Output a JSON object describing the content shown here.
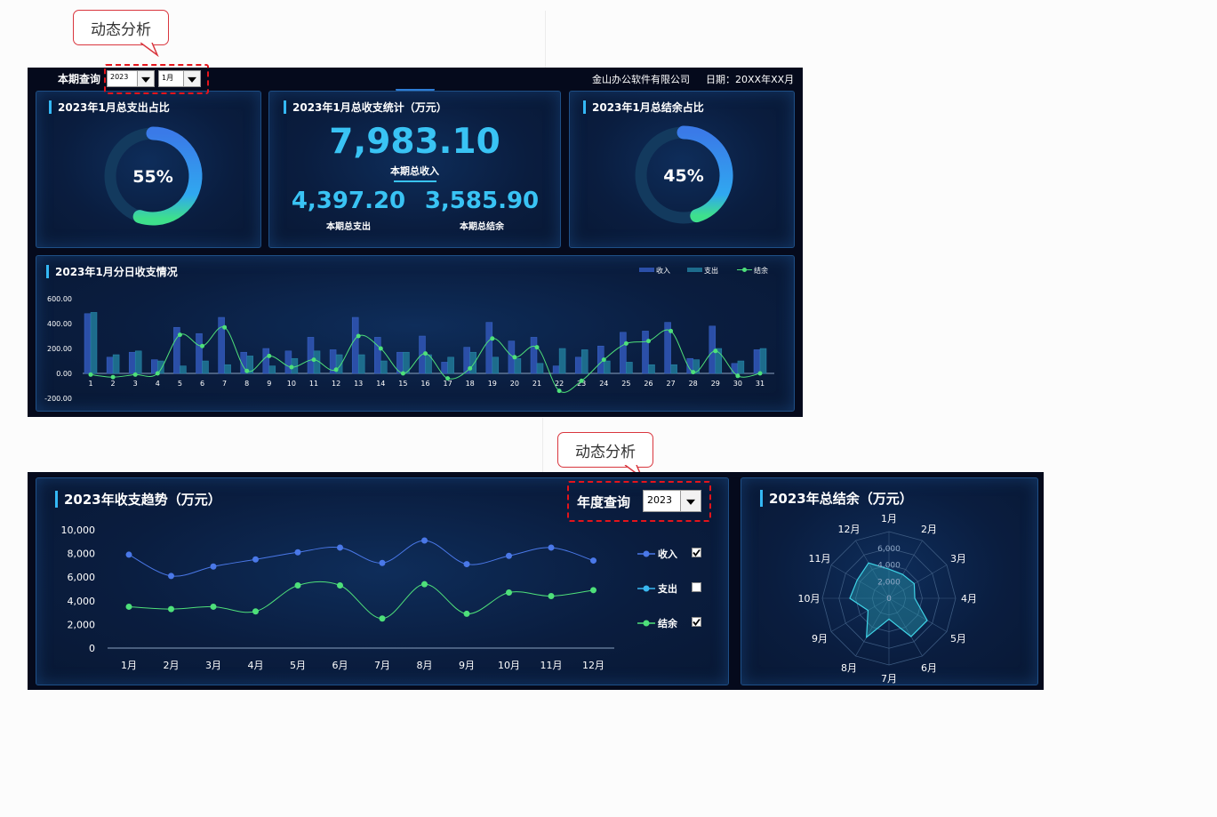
{
  "callout_label": "动态分析",
  "dash1": {
    "query_label": "本期查询",
    "year_select": "2023",
    "month_select": "1月",
    "company": "金山办公软件有限公司",
    "date_label": "日期：20XX年XX月",
    "expense_card": {
      "title": "2023年1月总支出占比",
      "percent_label": "55%",
      "percent": 55
    },
    "stats_card": {
      "title": "2023年1月总收支统计（万元）",
      "income_value": "7,983.10",
      "income_label": "本期总收入",
      "expense_value": "4,397.20",
      "expense_label": "本期总支出",
      "balance_value": "3,585.90",
      "balance_label": "本期总结余"
    },
    "balance_card": {
      "title": "2023年1月总结余占比",
      "percent_label": "45%",
      "percent": 45
    },
    "daily_title": "2023年1月分日收支情况",
    "colors": {
      "income": "#2b4fa8",
      "expense": "#1d6c8c",
      "balance": "#4ee07a",
      "accent": "#39c3f4"
    }
  },
  "dash2": {
    "trend_title": "2023年收支趋势（万元）",
    "year_query_label": "年度查询",
    "year_select": "2023",
    "legend": [
      {
        "name": "收入",
        "checked": true,
        "color": "#4a78e8"
      },
      {
        "name": "支出",
        "checked": false,
        "color": "#39b8f0"
      },
      {
        "name": "结余",
        "checked": true,
        "color": "#4ee07a"
      }
    ],
    "radar_title": "2023年总结余（万元）"
  },
  "chart_data": [
    {
      "type": "bar",
      "title": "2023年1月分日收支情况",
      "categories": [
        "1",
        "2",
        "3",
        "4",
        "5",
        "6",
        "7",
        "8",
        "9",
        "10",
        "11",
        "12",
        "13",
        "14",
        "15",
        "16",
        "17",
        "18",
        "19",
        "20",
        "21",
        "22",
        "23",
        "24",
        "25",
        "26",
        "27",
        "28",
        "29",
        "30",
        "31"
      ],
      "series": [
        {
          "name": "收入",
          "type": "bar",
          "values": [
            480,
            130,
            170,
            110,
            370,
            320,
            450,
            170,
            200,
            180,
            290,
            190,
            450,
            290,
            170,
            300,
            90,
            210,
            410,
            260,
            290,
            60,
            130,
            220,
            330,
            340,
            410,
            120,
            380,
            80,
            190
          ]
        },
        {
          "name": "支出",
          "type": "bar",
          "values": [
            490,
            150,
            180,
            100,
            60,
            100,
            70,
            140,
            60,
            120,
            180,
            150,
            150,
            100,
            170,
            150,
            130,
            170,
            130,
            120,
            80,
            200,
            190,
            100,
            90,
            70,
            70,
            110,
            200,
            100,
            200
          ]
        },
        {
          "name": "结余",
          "type": "line",
          "values": [
            -10,
            -30,
            -10,
            0,
            310,
            220,
            370,
            20,
            140,
            50,
            110,
            30,
            300,
            200,
            0,
            160,
            -40,
            40,
            280,
            130,
            210,
            -140,
            -60,
            110,
            240,
            260,
            340,
            10,
            180,
            -20,
            0
          ]
        }
      ],
      "ylim": [
        -200,
        600
      ],
      "yticks": [
        "600.00",
        "400.00",
        "200.00",
        "0.00",
        "-200.00"
      ],
      "legend_position": "top-right"
    },
    {
      "type": "line",
      "title": "2023年收支趋势（万元）",
      "categories": [
        "1月",
        "2月",
        "3月",
        "4月",
        "5月",
        "6月",
        "7月",
        "8月",
        "9月",
        "10月",
        "11月",
        "12月"
      ],
      "series": [
        {
          "name": "收入",
          "values": [
            7900,
            6100,
            6900,
            7500,
            8100,
            8500,
            7200,
            9100,
            7100,
            7800,
            8500,
            7400
          ]
        },
        {
          "name": "结余",
          "values": [
            3500,
            3300,
            3500,
            3100,
            5300,
            5300,
            2500,
            5400,
            2900,
            4700,
            4400,
            4900
          ]
        }
      ],
      "ylim": [
        0,
        10000
      ],
      "yticks": [
        "10,000",
        "8,000",
        "6,000",
        "4,000",
        "2,000",
        "0"
      ],
      "legend_position": "right"
    },
    {
      "type": "radar",
      "title": "2023年总结余（万元）",
      "categories": [
        "1月",
        "2月",
        "3月",
        "4月",
        "5月",
        "6月",
        "7月",
        "8月",
        "9月",
        "10月",
        "11月",
        "12月"
      ],
      "values": [
        3500,
        3300,
        3500,
        3100,
        5300,
        5300,
        2500,
        5400,
        2900,
        4700,
        4400,
        4900
      ],
      "rticks": [
        "0",
        "2,000",
        "4,000",
        "6,000"
      ],
      "rmax": 8000
    }
  ]
}
